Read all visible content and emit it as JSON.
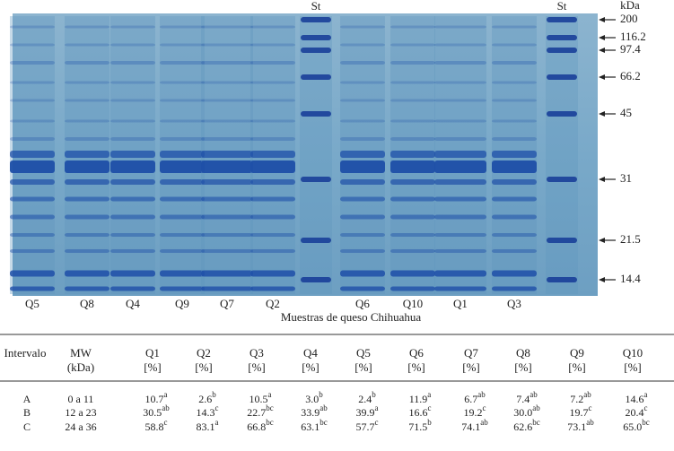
{
  "gel": {
    "top_labels": [
      "St",
      "St"
    ],
    "lane_labels": [
      "Q5",
      "Q8",
      "Q4",
      "Q9",
      "Q7",
      "Q2",
      "Q6",
      "Q10",
      "Q1",
      "Q3"
    ],
    "marker_unit": "kDa",
    "markers": [
      "200",
      "116.2",
      "97.4",
      "66.2",
      "45",
      "31",
      "21.5",
      "14.4"
    ],
    "caption": "Muestras de queso Chihuahua"
  },
  "table": {
    "columns": [
      {
        "name": "Intervalo"
      },
      {
        "name": "MW",
        "unit": "(kDa)"
      },
      {
        "name": "Q1",
        "unit": "[%]"
      },
      {
        "name": "Q2",
        "unit": "[%]"
      },
      {
        "name": "Q3",
        "unit": "[%]"
      },
      {
        "name": "Q4",
        "unit": "[%]"
      },
      {
        "name": "Q5",
        "unit": "[%]"
      },
      {
        "name": "Q6",
        "unit": "[%]"
      },
      {
        "name": "Q7",
        "unit": "[%]"
      },
      {
        "name": "Q8",
        "unit": "[%]"
      },
      {
        "name": "Q9",
        "unit": "[%]"
      },
      {
        "name": "Q10",
        "unit": "[%]"
      }
    ],
    "rows": [
      {
        "label": "A",
        "mw": "0 a 11",
        "cells": [
          {
            "v": "10.7",
            "sup": "a"
          },
          {
            "v": "2.6",
            "sup": "b"
          },
          {
            "v": "10.5",
            "sup": "a"
          },
          {
            "v": "3.0",
            "sup": "b"
          },
          {
            "v": "2.4",
            "sup": "b"
          },
          {
            "v": "11.9",
            "sup": "a"
          },
          {
            "v": "6.7",
            "sup": "ab"
          },
          {
            "v": "7.4",
            "sup": "ab"
          },
          {
            "v": "7.2",
            "sup": "ab"
          },
          {
            "v": "14.6",
            "sup": "a"
          }
        ]
      },
      {
        "label": "B",
        "mw": "12 a 23",
        "cells": [
          {
            "v": "30.5",
            "sup": "ab"
          },
          {
            "v": "14.3",
            "sup": "c"
          },
          {
            "v": "22.7",
            "sup": "bc"
          },
          {
            "v": "33.9",
            "sup": "ab"
          },
          {
            "v": "39.9",
            "sup": "a"
          },
          {
            "v": "16.6",
            "sup": "c"
          },
          {
            "v": "19.2",
            "sup": "c"
          },
          {
            "v": "30.0",
            "sup": "ab"
          },
          {
            "v": "19.7",
            "sup": "c"
          },
          {
            "v": "20.4",
            "sup": "c"
          }
        ]
      },
      {
        "label": "C",
        "mw": "24 a 36",
        "cells": [
          {
            "v": "58.8",
            "sup": "c"
          },
          {
            "v": "83.1",
            "sup": "a"
          },
          {
            "v": "66.8",
            "sup": "bc"
          },
          {
            "v": "63.1",
            "sup": "bc"
          },
          {
            "v": "57.7",
            "sup": "c"
          },
          {
            "v": "71.5",
            "sup": "b"
          },
          {
            "v": "74.1",
            "sup": "ab"
          },
          {
            "v": "62.6",
            "sup": "bc"
          },
          {
            "v": "73.1",
            "sup": "ab"
          },
          {
            "v": "65.0",
            "sup": "bc"
          }
        ]
      }
    ]
  }
}
